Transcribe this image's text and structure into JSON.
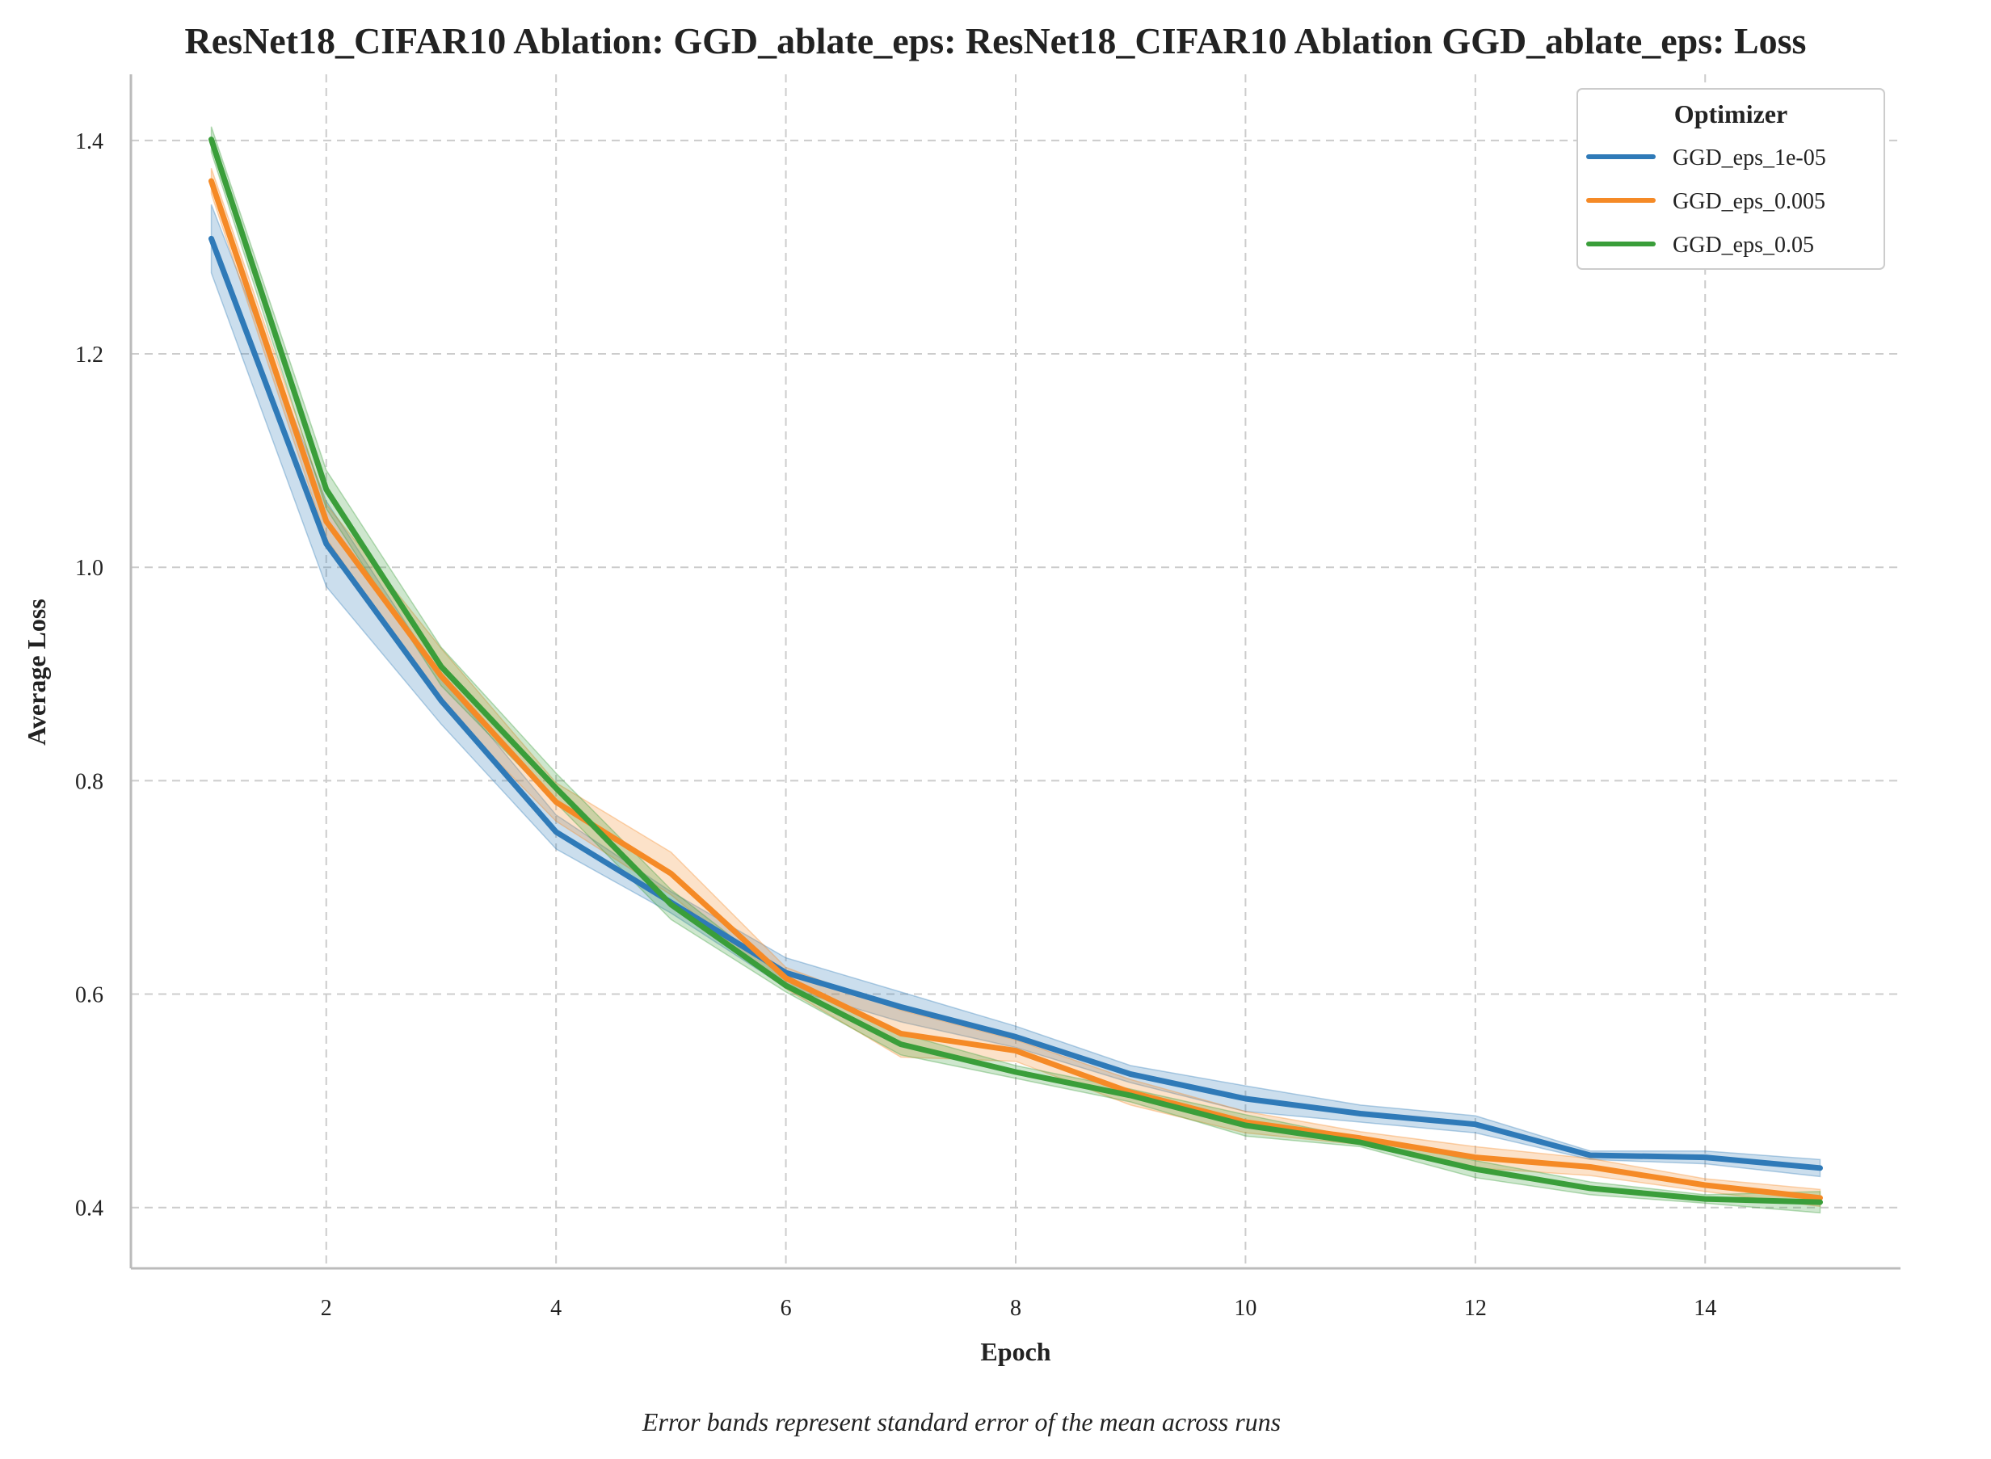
{
  "colors": {
    "GGD_eps_1e-05": "#2f7ab8",
    "GGD_eps_0.005": "#f58a26",
    "GGD_eps_0.05": "#3a9e3a",
    "grid": "#cccccc",
    "axis": "#bbbbbb"
  },
  "caption": "Error bands represent standard error of the mean across runs",
  "chart_data": {
    "type": "line",
    "title": "ResNet18_CIFAR10 Ablation: GGD_ablate_eps: ResNet18_CIFAR10 Ablation GGD_ablate_eps: Loss",
    "xlabel": "Epoch",
    "ylabel": "Average Loss",
    "xlim": [
      0.3,
      15.7
    ],
    "ylim": [
      0.343,
      1.462
    ],
    "xticks": [
      2,
      4,
      6,
      8,
      10,
      12,
      14
    ],
    "yticks": [
      0.4,
      0.6,
      0.8,
      1.0,
      1.2,
      1.4
    ],
    "xtick_labels": [
      "2",
      "4",
      "6",
      "8",
      "10",
      "12",
      "14"
    ],
    "ytick_labels": [
      "0.4",
      "0.6",
      "0.8",
      "1.0",
      "1.2",
      "1.4"
    ],
    "grid": true,
    "legend": {
      "title": "Optimizer",
      "position": "top-right"
    },
    "x": [
      1,
      2,
      3,
      4,
      5,
      6,
      7,
      8,
      9,
      10,
      11,
      12,
      13,
      14,
      15
    ],
    "series": [
      {
        "name": "GGD_eps_1e-05",
        "values": [
          1.308,
          1.022,
          0.875,
          0.752,
          0.686,
          0.62,
          0.588,
          0.56,
          0.525,
          0.502,
          0.488,
          0.478,
          0.449,
          0.447,
          0.437
        ],
        "err": [
          0.032,
          0.04,
          0.022,
          0.016,
          0.01,
          0.014,
          0.014,
          0.01,
          0.008,
          0.012,
          0.008,
          0.008,
          0.004,
          0.006,
          0.008
        ]
      },
      {
        "name": "GGD_eps_0.005",
        "values": [
          1.362,
          1.043,
          0.898,
          0.78,
          0.713,
          0.615,
          0.563,
          0.547,
          0.508,
          0.48,
          0.465,
          0.447,
          0.438,
          0.421,
          0.409
        ],
        "err": [
          0.012,
          0.016,
          0.026,
          0.018,
          0.02,
          0.01,
          0.022,
          0.01,
          0.012,
          0.01,
          0.006,
          0.01,
          0.008,
          0.006,
          0.008
        ]
      },
      {
        "name": "GGD_eps_0.05",
        "values": [
          1.401,
          1.073,
          0.907,
          0.793,
          0.684,
          0.608,
          0.553,
          0.527,
          0.505,
          0.477,
          0.461,
          0.436,
          0.418,
          0.408,
          0.405
        ],
        "err": [
          0.012,
          0.018,
          0.018,
          0.014,
          0.014,
          0.006,
          0.01,
          0.006,
          0.006,
          0.01,
          0.004,
          0.008,
          0.006,
          0.004,
          0.01
        ]
      }
    ]
  }
}
